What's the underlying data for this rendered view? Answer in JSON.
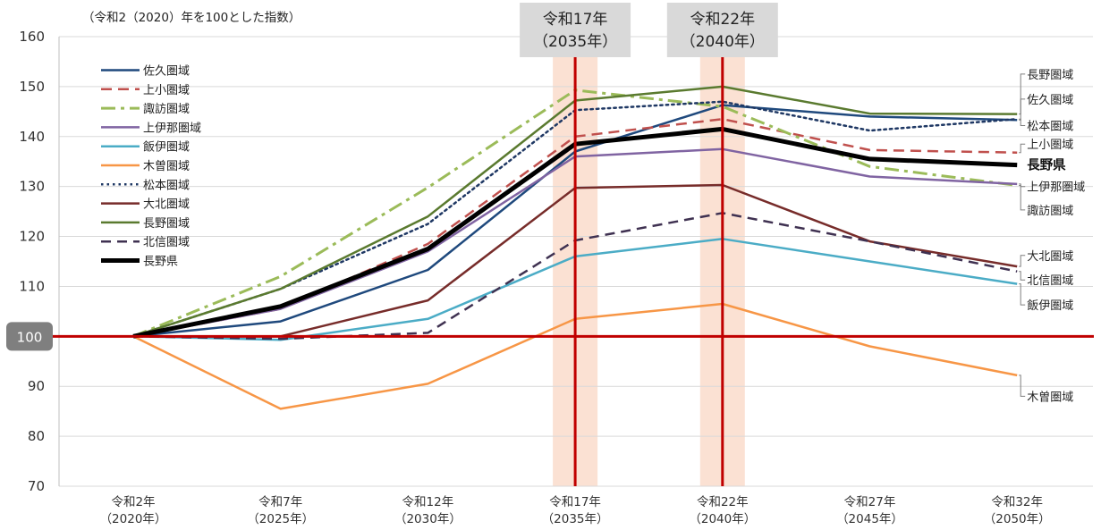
{
  "chart_data": {
    "type": "line",
    "title": "",
    "unit_note": "（令和2（2020）年を100とした指数）",
    "ylim": [
      70,
      160
    ],
    "yticks": [
      70,
      80,
      90,
      100,
      110,
      120,
      130,
      140,
      150,
      160
    ],
    "ytick_labels": [
      "70",
      "80",
      "90",
      "100",
      "110",
      "120",
      "130",
      "140",
      "150",
      "160"
    ],
    "reference_value": 100,
    "reference_label": "100",
    "reference_color": "#c00000",
    "categories": [
      {
        "line1": "令和2年",
        "line2": "（2020年）"
      },
      {
        "line1": "令和7年",
        "line2": "（2025年）"
      },
      {
        "line1": "令和12年",
        "line2": "（2030年）"
      },
      {
        "line1": "令和17年",
        "line2": "（2035年）"
      },
      {
        "line1": "令和22年",
        "line2": "（2040年）"
      },
      {
        "line1": "令和27年",
        "line2": "（2045年）"
      },
      {
        "line1": "令和32年",
        "line2": "（2050年）"
      }
    ],
    "highlights": [
      {
        "index": 3,
        "line1": "令和17年",
        "line2": "（2035年）"
      },
      {
        "index": 4,
        "line1": "令和22年",
        "line2": "（2040年）"
      }
    ],
    "series": [
      {
        "name": "佐久圏域",
        "color": "#1f497d",
        "dash": "solid",
        "width": 2.5,
        "values": [
          100,
          103,
          113.3,
          137,
          146.3,
          144,
          143.3
        ]
      },
      {
        "name": "上小圏域",
        "color": "#c0504d",
        "dash": "dash",
        "width": 2.5,
        "values": [
          100,
          105.5,
          118.5,
          140,
          143.5,
          137.3,
          136.8
        ]
      },
      {
        "name": "諏訪圏域",
        "color": "#9bbb59",
        "dash": "dashdot",
        "width": 3,
        "values": [
          100,
          112,
          129.8,
          149.3,
          146,
          134,
          130.2
        ]
      },
      {
        "name": "上伊那圏域",
        "color": "#8064a2",
        "dash": "solid",
        "width": 2.5,
        "values": [
          100,
          105.5,
          117,
          136,
          137.5,
          132,
          130.5
        ]
      },
      {
        "name": "飯伊圏域",
        "color": "#4bacc6",
        "dash": "solid",
        "width": 2.5,
        "values": [
          100,
          99.3,
          103.5,
          116,
          119.5,
          115,
          110.5
        ]
      },
      {
        "name": "木曽圏域",
        "color": "#f79646",
        "dash": "solid",
        "width": 2.5,
        "values": [
          100,
          85.5,
          90.5,
          103.5,
          106.5,
          98,
          92.2
        ]
      },
      {
        "name": "松本圏域",
        "color": "#1f3864",
        "dash": "dot",
        "width": 2.5,
        "values": [
          100,
          109.5,
          122.5,
          145.3,
          147,
          141.2,
          143.5
        ]
      },
      {
        "name": "大北圏域",
        "color": "#772c2a",
        "dash": "solid",
        "width": 2.5,
        "values": [
          100,
          100,
          107.2,
          129.7,
          130.3,
          119,
          114
        ]
      },
      {
        "name": "長野圏域",
        "color": "#5a7a2f",
        "dash": "solid",
        "width": 2.5,
        "values": [
          100,
          109.5,
          124,
          147.2,
          150,
          144.6,
          144.5
        ]
      },
      {
        "name": "北信圏域",
        "color": "#3f3151",
        "dash": "longdash",
        "width": 2.5,
        "values": [
          100,
          99.5,
          100.7,
          119.2,
          124.7,
          119,
          113
        ]
      },
      {
        "name": "長野県",
        "color": "#000000",
        "dash": "solid",
        "width": 5,
        "values": [
          100,
          106,
          117.5,
          138.5,
          141.5,
          135.5,
          134.3
        ]
      }
    ],
    "end_labels": [
      {
        "text": "長野圏域",
        "series": "長野圏域",
        "y": 152.5,
        "bold": false
      },
      {
        "text": "佐久圏域",
        "series": "佐久圏域",
        "y": 147.5,
        "bold": false
      },
      {
        "text": "松本圏域",
        "series": "松本圏域",
        "y": 142.2,
        "bold": false
      },
      {
        "text": "上小圏域",
        "series": "上小圏域",
        "y": 138.5,
        "bold": false
      },
      {
        "text": "長野県",
        "series": "長野県",
        "y": 134.3,
        "bold": true
      },
      {
        "text": "上伊那圏域",
        "series": "上伊那圏域",
        "y": 130,
        "bold": false
      },
      {
        "text": "諏訪圏域",
        "series": "諏訪圏域",
        "y": 125.3,
        "bold": false
      },
      {
        "text": "大北圏域",
        "series": "大北圏域",
        "y": 116.2,
        "bold": false
      },
      {
        "text": "北信圏域",
        "series": "北信圏域",
        "y": 111.3,
        "bold": false
      },
      {
        "text": "飯伊圏域",
        "series": "飯伊圏域",
        "y": 106.3,
        "bold": false
      },
      {
        "text": "木曽圏域",
        "series": "木曽圏域",
        "y": 88,
        "bold": false
      }
    ],
    "legend_position": "top-left",
    "grid": true
  }
}
